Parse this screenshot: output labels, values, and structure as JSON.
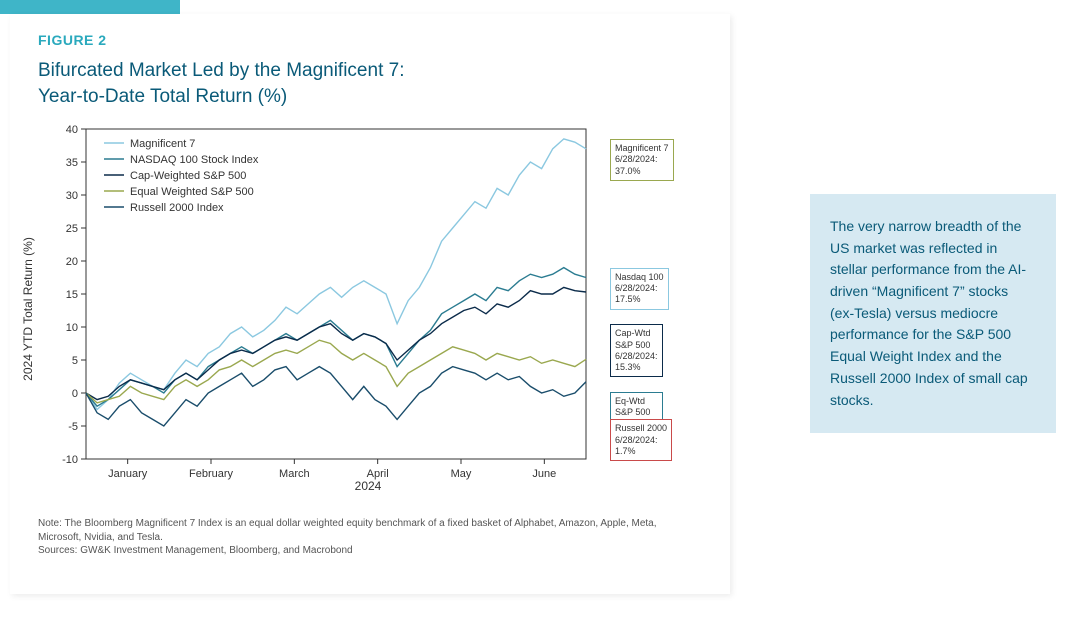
{
  "accent_color": "#3fb5c8",
  "figure_label": "FIGURE 2",
  "figure_title_line1": "Bifurcated Market Led by the Magnificent 7:",
  "figure_title_line2": "Year-to-Date Total Return (%)",
  "callout_text": "The very narrow breadth of the US market was reflected in stellar performance from the AI-driven “Magnificent 7” stocks (ex-Tesla) versus mediocre performance for the S&P 500 Equal Weight Index and the Russell 2000 Index of small cap stocks.",
  "note_line": "Note: The Bloomberg Magnificent 7 Index is an equal dollar weighted equity benchmark of a fixed basket of Alphabet, Amazon, Apple, Meta, Microsoft, Nvidia, and Tesla.",
  "source_line": "Sources: GW&K Investment Management, Bloomberg, and Macrobond",
  "chart": {
    "type": "line",
    "background_color": "#ffffff",
    "plot_border_color": "#333333",
    "grid": "off",
    "y_axis": {
      "label": "2024 YTD Total Return (%)",
      "min": -10,
      "max": 40,
      "tick_step": 5,
      "label_fontsize": 12,
      "tick_fontsize": 11
    },
    "x_axis": {
      "year_label": "2024",
      "months": [
        "January",
        "February",
        "March",
        "April",
        "May",
        "June"
      ],
      "tick_fontsize": 11
    },
    "legend": {
      "position": "upper-left",
      "fontsize": 11
    },
    "line_width": 1.4,
    "series": [
      {
        "name": "Magnificent 7",
        "color": "#8bc8e0",
        "end_label": {
          "lines": [
            "Magnificent 7",
            "6/28/2024:",
            "37.0%"
          ],
          "border": "#9aa84f"
        },
        "values": [
          0,
          -2.5,
          -1,
          1.5,
          3,
          2,
          1,
          0.5,
          3,
          5,
          4,
          6,
          7,
          9,
          10,
          8.5,
          9.5,
          11,
          13,
          12,
          13.5,
          15,
          16,
          14.5,
          16,
          17,
          16,
          15,
          10.5,
          14,
          16,
          19,
          23,
          25,
          27,
          29,
          28,
          31,
          30,
          33,
          35,
          34,
          37,
          38.5,
          38,
          37
        ]
      },
      {
        "name": "NASDAQ 100 Stock Index",
        "color": "#2b7c91",
        "end_label": {
          "lines": [
            "Nasdaq 100",
            "6/28/2024:",
            "17.5%"
          ],
          "border": "#8bc8e0"
        },
        "values": [
          0,
          -2,
          -1,
          0.5,
          2,
          1.5,
          1,
          0,
          2,
          3,
          2,
          4,
          5,
          6,
          7,
          6,
          7,
          8,
          9,
          8,
          9,
          10,
          11,
          9.5,
          8,
          9,
          8.5,
          7.5,
          4,
          6,
          8,
          9.5,
          12,
          13,
          14,
          15,
          14,
          16,
          15.5,
          17,
          18,
          17.5,
          18,
          19,
          18,
          17.5
        ]
      },
      {
        "name": "Cap-Weighted S&P 500",
        "color": "#0b2b4a",
        "end_label": {
          "lines": [
            "Cap-Wtd",
            "S&P 500",
            "6/28/2024:",
            "15.3%"
          ],
          "border": "#0b2b4a"
        },
        "values": [
          0,
          -1,
          -0.5,
          1,
          2,
          1.5,
          1,
          0.5,
          2,
          3,
          2,
          3.5,
          5,
          6,
          6.5,
          6,
          7,
          8,
          8.5,
          8,
          9,
          10,
          10.5,
          9,
          8,
          9,
          8.5,
          7.5,
          5,
          6.5,
          8,
          9,
          10.5,
          11.5,
          12.5,
          13,
          12,
          13.5,
          13,
          14,
          15.5,
          15,
          15,
          16,
          15.5,
          15.3
        ]
      },
      {
        "name": "Equal Weighted S&P 500",
        "color": "#9aa84f",
        "end_label": {
          "lines": [
            "Eq-Wtd",
            "S&P 500",
            "6/28/2024:",
            "5.1%"
          ],
          "border": "#2b7c91"
        },
        "values": [
          0,
          -1.5,
          -1,
          -0.5,
          1,
          0,
          -0.5,
          -1,
          1,
          2,
          1,
          2,
          3.5,
          4,
          5,
          4,
          5,
          6,
          6.5,
          6,
          7,
          8,
          7.5,
          6,
          5,
          6,
          5,
          4,
          1,
          3,
          4,
          5,
          6,
          7,
          6.5,
          6,
          5,
          6,
          5.5,
          5,
          5.5,
          4.5,
          5,
          4.5,
          4,
          5.1
        ]
      },
      {
        "name": "Russell 2000 Index",
        "color": "#1a4d6b",
        "end_label": {
          "lines": [
            "Russell 2000",
            "6/28/2024:",
            "1.7%"
          ],
          "border": "#c94a4a"
        },
        "values": [
          0,
          -3,
          -4,
          -2,
          -1,
          -3,
          -4,
          -5,
          -3,
          -1,
          -2,
          0,
          1,
          2,
          3,
          1,
          2,
          3.5,
          4,
          2,
          3,
          4,
          3,
          1,
          -1,
          1,
          -1,
          -2,
          -4,
          -2,
          0,
          1,
          3,
          4,
          3.5,
          3,
          2,
          3,
          2,
          2.5,
          1,
          0,
          0.5,
          -0.5,
          0,
          1.7
        ]
      }
    ]
  }
}
